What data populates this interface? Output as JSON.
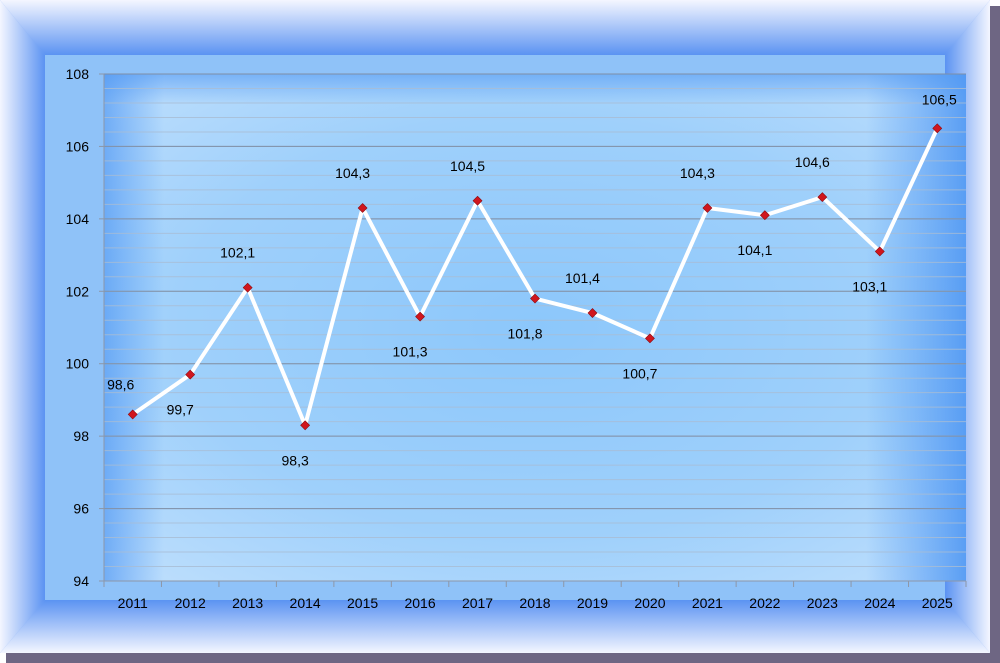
{
  "chart_data": {
    "type": "line",
    "title": "",
    "xlabel": "",
    "ylabel": "",
    "categories": [
      "2011",
      "2012",
      "2013",
      "2014",
      "2015",
      "2016",
      "2017",
      "2018",
      "2019",
      "2020",
      "2021",
      "2022",
      "2023",
      "2024",
      "2025"
    ],
    "series": [
      {
        "values": [
          98.6,
          99.7,
          102.1,
          98.3,
          104.3,
          101.3,
          104.5,
          101.8,
          101.4,
          100.7,
          104.3,
          104.1,
          104.6,
          103.1,
          106.5
        ],
        "data_labels": [
          "98,6",
          "99,7",
          "102,1",
          "98,3",
          "104,3",
          "101,3",
          "104,5",
          "101,8",
          "101,4",
          "100,7",
          "104,3",
          "104,1",
          "104,6",
          "103,1",
          "106,5"
        ],
        "label_positions": [
          "above",
          "below",
          "above",
          "below",
          "above",
          "below",
          "above",
          "below",
          "above",
          "below",
          "above",
          "below",
          "above",
          "below",
          "above"
        ]
      }
    ],
    "ylim": [
      94,
      108
    ],
    "ymajor_ticks": [
      "94",
      "96",
      "98",
      "100",
      "102",
      "104",
      "106",
      "108"
    ],
    "grid": true,
    "legend": "none",
    "colors": {
      "line": "#ffffff",
      "marker": "#d0161e",
      "frame_outer": "#6e6683",
      "frame_light": "#f2f4ff",
      "plot_blue": "#5ea8f5",
      "plot_light": "#d7ecfd",
      "major_grid": "#7f8fa6",
      "minor_grid": "#a9bdd4"
    }
  }
}
